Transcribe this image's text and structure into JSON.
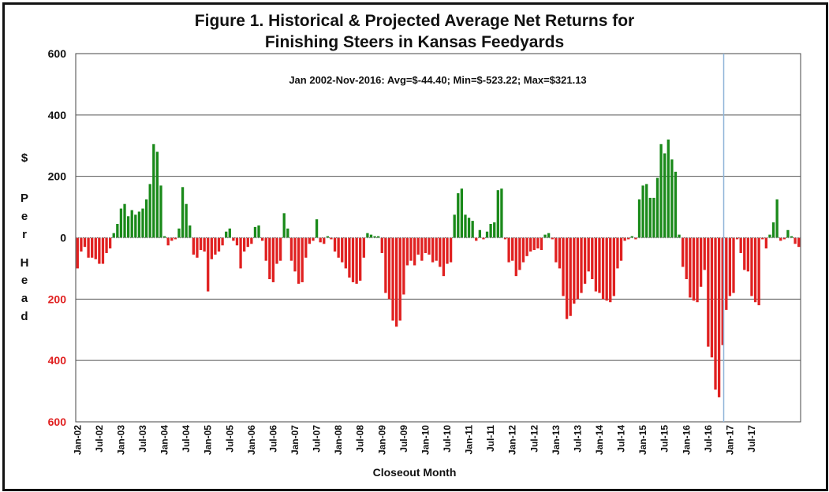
{
  "chart_data": {
    "type": "bar",
    "title_line1": "Figure 1.  Historical & Projected Average Net Returns for",
    "title_line2": "Finishing Steers in Kansas Feedyards",
    "annotation": "Jan 2002-Nov-2016:  Avg=$-44.40; Min=$-523.22; Max=$321.13",
    "xlabel": "Closeout Month",
    "ylabel_letters": [
      "$",
      "P",
      "e",
      "r",
      "H",
      "e",
      "a",
      "d"
    ],
    "ylim": [
      -600,
      600
    ],
    "yticks": [
      {
        "value": 600,
        "label": "600"
      },
      {
        "value": 400,
        "label": "400"
      },
      {
        "value": 200,
        "label": "200"
      },
      {
        "value": 0,
        "label": "0"
      },
      {
        "value": -200,
        "label": "200"
      },
      {
        "value": -400,
        "label": "400"
      },
      {
        "value": -600,
        "label": "600"
      }
    ],
    "grid": true,
    "positive_color": "#1a8a1a",
    "negative_color": "#e02020",
    "projection_line_color": "#8fb4d8",
    "projection_start": "Dec-16",
    "x_tick_labels": [
      "Jan-02",
      "Jul-02",
      "Jan-03",
      "Jul-03",
      "Jan-04",
      "Jul-04",
      "Jan-05",
      "Jul-05",
      "Jan-06",
      "Jul-06",
      "Jan-07",
      "Jul-07",
      "Jan-08",
      "Jul-08",
      "Jan-09",
      "Jul-09",
      "Jan-10",
      "Jul-10",
      "Jan-11",
      "Jul-11",
      "Jan-12",
      "Jul-12",
      "Jan-13",
      "Jul-13",
      "Jan-14",
      "Jul-14",
      "Jan-15",
      "Jul-15",
      "Jan-16",
      "Jul-16",
      "Jan-17",
      "Jul-17"
    ],
    "x_tick_every_months": 6,
    "start_month": "Jan-02",
    "values": [
      -100,
      -45,
      -30,
      -65,
      -65,
      -70,
      -85,
      -85,
      -50,
      -35,
      15,
      45,
      95,
      110,
      70,
      90,
      75,
      85,
      95,
      125,
      175,
      305,
      280,
      170,
      5,
      -25,
      -10,
      -5,
      30,
      165,
      110,
      40,
      -55,
      -65,
      -40,
      -45,
      -175,
      -70,
      -55,
      -45,
      -25,
      20,
      30,
      -10,
      -25,
      -100,
      -45,
      -30,
      -20,
      35,
      40,
      -10,
      -75,
      -135,
      -145,
      -85,
      -75,
      80,
      30,
      -75,
      -110,
      -150,
      -145,
      -65,
      -20,
      -10,
      60,
      -15,
      -20,
      5,
      -5,
      -45,
      -65,
      -80,
      -100,
      -130,
      -145,
      -150,
      -140,
      -65,
      15,
      10,
      5,
      5,
      -50,
      -180,
      -200,
      -270,
      -290,
      -270,
      -185,
      -90,
      -75,
      -90,
      -55,
      -75,
      -50,
      -55,
      -80,
      -75,
      -95,
      -125,
      -85,
      -80,
      75,
      145,
      160,
      75,
      65,
      55,
      -10,
      25,
      -5,
      20,
      45,
      50,
      155,
      160,
      -5,
      -80,
      -75,
      -125,
      -105,
      -80,
      -60,
      -45,
      -40,
      -35,
      -40,
      10,
      15,
      -5,
      -80,
      -100,
      -190,
      -265,
      -255,
      -215,
      -200,
      -180,
      -150,
      -110,
      -135,
      -175,
      -180,
      -200,
      -205,
      -210,
      -190,
      -100,
      -75,
      -10,
      -5,
      5,
      -5,
      125,
      170,
      175,
      130,
      130,
      195,
      305,
      275,
      320,
      255,
      215,
      10,
      -95,
      -135,
      -195,
      -205,
      -210,
      -160,
      -105,
      -355,
      -390,
      -495,
      -520,
      -350,
      -235,
      -190,
      -180,
      -5,
      -50,
      -105,
      -110,
      -190,
      -210,
      -220,
      -5,
      -35,
      10,
      50,
      125,
      -10,
      -5,
      25,
      5,
      -20,
      -30
    ]
  }
}
